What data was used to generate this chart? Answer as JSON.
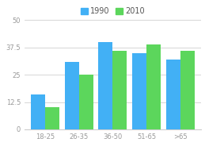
{
  "categories": [
    "18-25",
    "26-35",
    "36-50",
    "51-65",
    ">65"
  ],
  "values_1990": [
    16,
    31,
    40,
    35,
    32
  ],
  "values_2010": [
    10,
    25,
    36,
    39,
    36
  ],
  "color_1990": "#42b0f5",
  "color_2010": "#5cd65c",
  "ylim": [
    0,
    50
  ],
  "yticks": [
    0,
    12.5,
    25,
    37.5,
    50
  ],
  "ytick_labels": [
    "0",
    "12.5",
    "25",
    "37.5",
    "50"
  ],
  "legend_labels": [
    "1990",
    "2010"
  ],
  "bar_width": 0.42,
  "background_color": "#ffffff",
  "grid_color": "#d0d0d0",
  "label_fontsize": 6,
  "legend_fontsize": 7
}
